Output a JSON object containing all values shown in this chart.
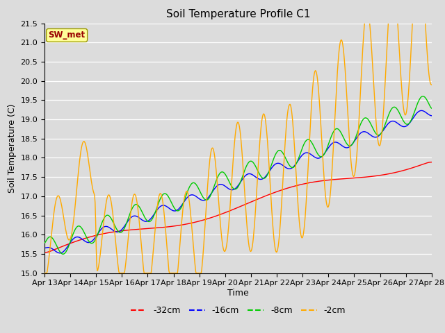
{
  "title": "Soil Temperature Profile C1",
  "xlabel": "Time",
  "ylabel": "Soil Temperature (C)",
  "ylim": [
    15.0,
    21.5
  ],
  "bg_color": "#dcdcdc",
  "plot_bg_color": "#dcdcdc",
  "legend_entries": [
    "-32cm",
    "-16cm",
    "-8cm",
    "-2cm"
  ],
  "legend_colors": [
    "#ff0000",
    "#0000ff",
    "#00cc00",
    "#ffaa00"
  ],
  "annotation_text": "SW_met",
  "annotation_bg": "#ffff99",
  "annotation_fg": "#990000",
  "x_tick_labels": [
    "Apr 13",
    "Apr 14",
    "Apr 15",
    "Apr 16",
    "Apr 17",
    "Apr 18",
    "Apr 19",
    "Apr 20",
    "Apr 21",
    "Apr 22",
    "Apr 23",
    "Apr 24",
    "Apr 25",
    "Apr 26",
    "Apr 27",
    "Apr 28"
  ],
  "title_fontsize": 11,
  "axis_label_fontsize": 9,
  "tick_fontsize": 8,
  "legend_fontsize": 9
}
